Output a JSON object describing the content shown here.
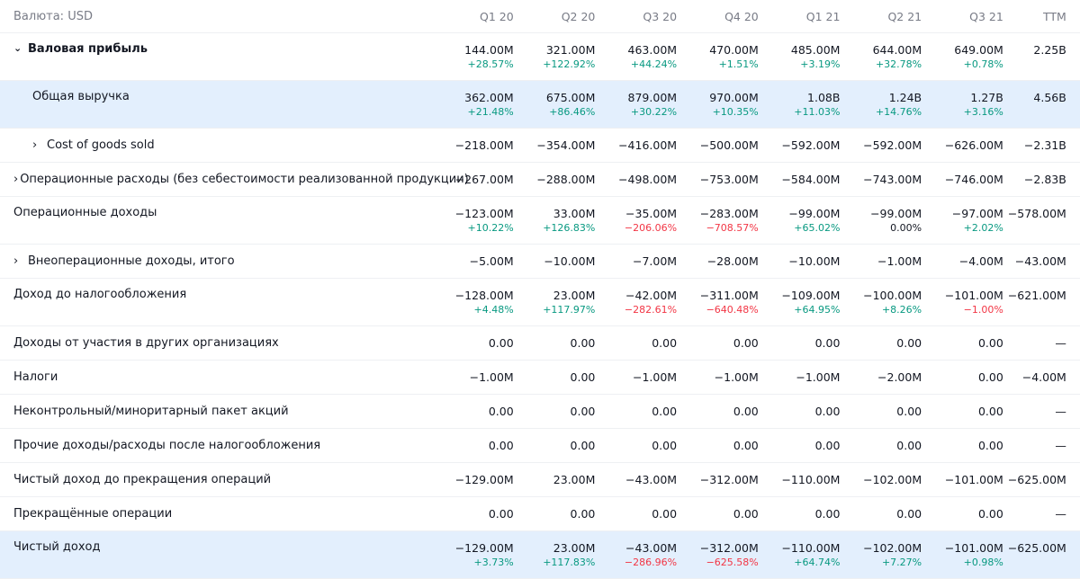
{
  "currency_label": "Валюта: USD",
  "columns": [
    "Q1 20",
    "Q2 20",
    "Q3 20",
    "Q4 20",
    "Q1 21",
    "Q2 21",
    "Q3 21",
    "TTM"
  ],
  "rows": [
    {
      "label": "Валовая прибыль",
      "bold": true,
      "chevron": "down",
      "indent": false,
      "highlight": false,
      "values": [
        "144.00M",
        "321.00M",
        "463.00M",
        "470.00M",
        "485.00M",
        "644.00M",
        "649.00M",
        "2.25B"
      ],
      "pcts": [
        "+28.57%",
        "+122.92%",
        "+44.24%",
        "+1.51%",
        "+3.19%",
        "+32.78%",
        "+0.78%",
        ""
      ]
    },
    {
      "label": "Общая выручка",
      "bold": false,
      "chevron": "",
      "indent": true,
      "highlight": true,
      "values": [
        "362.00M",
        "675.00M",
        "879.00M",
        "970.00M",
        "1.08B",
        "1.24B",
        "1.27B",
        "4.56B"
      ],
      "pcts": [
        "+21.48%",
        "+86.46%",
        "+30.22%",
        "+10.35%",
        "+11.03%",
        "+14.76%",
        "+3.16%",
        ""
      ]
    },
    {
      "label": "Cost of goods sold",
      "bold": false,
      "chevron": "right",
      "indent": true,
      "highlight": false,
      "values": [
        "−218.00M",
        "−354.00M",
        "−416.00M",
        "−500.00M",
        "−592.00M",
        "−592.00M",
        "−626.00M",
        "−2.31B"
      ],
      "pcts": []
    },
    {
      "label": "Операционные расходы (без себестоимости реализованной продукции)",
      "bold": false,
      "chevron": "right",
      "indent": false,
      "highlight": false,
      "values": [
        "−267.00M",
        "−288.00M",
        "−498.00M",
        "−753.00M",
        "−584.00M",
        "−743.00M",
        "−746.00M",
        "−2.83B"
      ],
      "pcts": []
    },
    {
      "label": "Операционные доходы",
      "bold": false,
      "chevron": "",
      "indent": false,
      "highlight": false,
      "values": [
        "−123.00M",
        "33.00M",
        "−35.00M",
        "−283.00M",
        "−99.00M",
        "−99.00M",
        "−97.00M",
        "−578.00M"
      ],
      "pcts": [
        "+10.22%",
        "+126.83%",
        "−206.06%",
        "−708.57%",
        "+65.02%",
        "0.00%",
        "+2.02%",
        ""
      ]
    },
    {
      "label": "Внеоперационные доходы, итого",
      "bold": false,
      "chevron": "right",
      "indent": false,
      "highlight": false,
      "values": [
        "−5.00M",
        "−10.00M",
        "−7.00M",
        "−28.00M",
        "−10.00M",
        "−1.00M",
        "−4.00M",
        "−43.00M"
      ],
      "pcts": []
    },
    {
      "label": "Доход до налогообложения",
      "bold": false,
      "chevron": "",
      "indent": false,
      "highlight": false,
      "values": [
        "−128.00M",
        "23.00M",
        "−42.00M",
        "−311.00M",
        "−109.00M",
        "−100.00M",
        "−101.00M",
        "−621.00M"
      ],
      "pcts": [
        "+4.48%",
        "+117.97%",
        "−282.61%",
        "−640.48%",
        "+64.95%",
        "+8.26%",
        "−1.00%",
        ""
      ]
    },
    {
      "label": "Доходы от участия в других организациях",
      "bold": false,
      "chevron": "",
      "indent": false,
      "highlight": false,
      "values": [
        "0.00",
        "0.00",
        "0.00",
        "0.00",
        "0.00",
        "0.00",
        "0.00",
        "—"
      ],
      "pcts": []
    },
    {
      "label": "Налоги",
      "bold": false,
      "chevron": "",
      "indent": false,
      "highlight": false,
      "values": [
        "−1.00M",
        "0.00",
        "−1.00M",
        "−1.00M",
        "−1.00M",
        "−2.00M",
        "0.00",
        "−4.00M"
      ],
      "pcts": []
    },
    {
      "label": "Неконтрольный/миноритарный пакет акций",
      "bold": false,
      "chevron": "",
      "indent": false,
      "highlight": false,
      "values": [
        "0.00",
        "0.00",
        "0.00",
        "0.00",
        "0.00",
        "0.00",
        "0.00",
        "—"
      ],
      "pcts": []
    },
    {
      "label": "Прочие доходы/расходы после налогообложения",
      "bold": false,
      "chevron": "",
      "indent": false,
      "highlight": false,
      "values": [
        "0.00",
        "0.00",
        "0.00",
        "0.00",
        "0.00",
        "0.00",
        "0.00",
        "—"
      ],
      "pcts": []
    },
    {
      "label": "Чистый доход до прекращения операций",
      "bold": false,
      "chevron": "",
      "indent": false,
      "highlight": false,
      "values": [
        "−129.00M",
        "23.00M",
        "−43.00M",
        "−312.00M",
        "−110.00M",
        "−102.00M",
        "−101.00M",
        "−625.00M"
      ],
      "pcts": []
    },
    {
      "label": "Прекращённые операции",
      "bold": false,
      "chevron": "",
      "indent": false,
      "highlight": false,
      "values": [
        "0.00",
        "0.00",
        "0.00",
        "0.00",
        "0.00",
        "0.00",
        "0.00",
        "—"
      ],
      "pcts": []
    },
    {
      "label": "Чистый доход",
      "bold": false,
      "chevron": "",
      "indent": false,
      "highlight": true,
      "values": [
        "−129.00M",
        "23.00M",
        "−43.00M",
        "−312.00M",
        "−110.00M",
        "−102.00M",
        "−101.00M",
        "−625.00M"
      ],
      "pcts": [
        "+3.73%",
        "+117.83%",
        "−286.96%",
        "−625.58%",
        "+64.74%",
        "+7.27%",
        "+0.98%",
        ""
      ]
    }
  ],
  "colors": {
    "positive": "#089981",
    "negative": "#f23645",
    "highlight_row": "#e3effd",
    "header_text": "#787b86"
  },
  "icons": {
    "expanded": "chevron-down-icon",
    "collapsed": "chevron-right-icon"
  }
}
